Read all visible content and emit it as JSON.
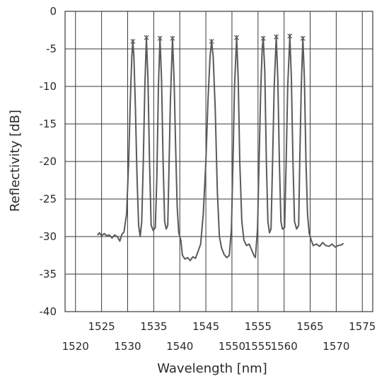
{
  "chart_data": {
    "type": "line",
    "title": "",
    "xlabel": "Wavelength [nm]",
    "ylabel": "Reflectivity [dB]",
    "xlim": [
      1518,
      1577
    ],
    "ylim": [
      -40,
      0
    ],
    "grid": true,
    "x_ticks_top_row": [
      "1525",
      "1535",
      "1545",
      "1555",
      "1565",
      "1575"
    ],
    "x_ticks_bottom_row": [
      "1520",
      "1530",
      "1540",
      "1550",
      "1555",
      "1560",
      "1570"
    ],
    "y_ticks": [
      "0",
      "-5",
      "-10",
      "-15",
      "-20",
      "-25",
      "-30",
      "-35",
      "-40"
    ],
    "series": [
      {
        "color": "#5a5a5a",
        "peaks": [
          {
            "x": 1531.0,
            "y": -4.0
          },
          {
            "x": 1533.6,
            "y": -3.5
          },
          {
            "x": 1536.2,
            "y": -3.6
          },
          {
            "x": 1538.6,
            "y": -3.6
          },
          {
            "x": 1546.1,
            "y": -4.0
          },
          {
            "x": 1550.9,
            "y": -3.5
          },
          {
            "x": 1556.0,
            "y": -3.6
          },
          {
            "x": 1558.5,
            "y": -3.4
          },
          {
            "x": 1561.1,
            "y": -3.3
          },
          {
            "x": 1563.6,
            "y": -3.6
          }
        ],
        "points": [
          [
            1524.2,
            -29.8
          ],
          [
            1524.6,
            -29.5
          ],
          [
            1525.0,
            -29.9
          ],
          [
            1525.5,
            -29.6
          ],
          [
            1526.0,
            -29.9
          ],
          [
            1526.5,
            -29.8
          ],
          [
            1527.0,
            -30.2
          ],
          [
            1527.5,
            -29.8
          ],
          [
            1528.0,
            -30.0
          ],
          [
            1528.5,
            -30.6
          ],
          [
            1528.9,
            -29.7
          ],
          [
            1529.3,
            -29.4
          ],
          [
            1529.8,
            -27.0
          ],
          [
            1530.2,
            -20.0
          ],
          [
            1530.5,
            -12.0
          ],
          [
            1530.8,
            -6.0
          ],
          [
            1531.0,
            -4.0
          ],
          [
            1531.2,
            -6.0
          ],
          [
            1531.5,
            -13.0
          ],
          [
            1531.8,
            -22.0
          ],
          [
            1532.1,
            -28.5
          ],
          [
            1532.4,
            -30.0
          ],
          [
            1532.7,
            -28.0
          ],
          [
            1533.0,
            -20.0
          ],
          [
            1533.3,
            -10.0
          ],
          [
            1533.6,
            -3.5
          ],
          [
            1533.9,
            -9.0
          ],
          [
            1534.2,
            -20.0
          ],
          [
            1534.5,
            -28.5
          ],
          [
            1534.9,
            -29.2
          ],
          [
            1535.3,
            -28.8
          ],
          [
            1535.6,
            -22.0
          ],
          [
            1535.9,
            -10.0
          ],
          [
            1536.2,
            -3.6
          ],
          [
            1536.5,
            -9.0
          ],
          [
            1536.8,
            -20.0
          ],
          [
            1537.1,
            -28.0
          ],
          [
            1537.4,
            -29.0
          ],
          [
            1537.7,
            -28.5
          ],
          [
            1537.9,
            -22.0
          ],
          [
            1538.2,
            -12.0
          ],
          [
            1538.6,
            -3.6
          ],
          [
            1538.9,
            -9.0
          ],
          [
            1539.2,
            -18.0
          ],
          [
            1539.5,
            -26.0
          ],
          [
            1539.8,
            -29.5
          ],
          [
            1540.2,
            -30.5
          ],
          [
            1540.5,
            -32.5
          ],
          [
            1541.0,
            -33.0
          ],
          [
            1541.5,
            -32.8
          ],
          [
            1542.0,
            -33.2
          ],
          [
            1542.5,
            -32.7
          ],
          [
            1543.0,
            -32.9
          ],
          [
            1543.5,
            -32.0
          ],
          [
            1544.0,
            -31.0
          ],
          [
            1544.5,
            -27.0
          ],
          [
            1545.0,
            -20.0
          ],
          [
            1545.4,
            -12.0
          ],
          [
            1545.8,
            -6.0
          ],
          [
            1546.1,
            -4.0
          ],
          [
            1546.4,
            -6.0
          ],
          [
            1546.8,
            -13.0
          ],
          [
            1547.2,
            -24.0
          ],
          [
            1547.6,
            -30.0
          ],
          [
            1548.0,
            -31.5
          ],
          [
            1548.5,
            -32.4
          ],
          [
            1549.0,
            -32.8
          ],
          [
            1549.5,
            -32.5
          ],
          [
            1549.9,
            -29.0
          ],
          [
            1550.2,
            -20.0
          ],
          [
            1550.5,
            -10.0
          ],
          [
            1550.9,
            -3.5
          ],
          [
            1551.2,
            -9.0
          ],
          [
            1551.5,
            -20.0
          ],
          [
            1551.9,
            -28.0
          ],
          [
            1552.3,
            -30.5
          ],
          [
            1552.8,
            -31.2
          ],
          [
            1553.3,
            -31.0
          ],
          [
            1553.8,
            -31.8
          ],
          [
            1554.2,
            -32.5
          ],
          [
            1554.5,
            -32.8
          ],
          [
            1554.9,
            -29.0
          ],
          [
            1555.2,
            -20.0
          ],
          [
            1555.5,
            -11.0
          ],
          [
            1555.8,
            -5.0
          ],
          [
            1556.0,
            -3.6
          ],
          [
            1556.3,
            -8.0
          ],
          [
            1556.6,
            -20.0
          ],
          [
            1556.9,
            -28.0
          ],
          [
            1557.2,
            -29.5
          ],
          [
            1557.5,
            -29.0
          ],
          [
            1557.8,
            -20.0
          ],
          [
            1558.1,
            -10.0
          ],
          [
            1558.5,
            -3.4
          ],
          [
            1558.8,
            -9.0
          ],
          [
            1559.1,
            -20.0
          ],
          [
            1559.4,
            -28.0
          ],
          [
            1559.7,
            -29.0
          ],
          [
            1560.1,
            -28.8
          ],
          [
            1560.4,
            -20.0
          ],
          [
            1560.7,
            -10.0
          ],
          [
            1561.1,
            -3.3
          ],
          [
            1561.4,
            -9.0
          ],
          [
            1561.7,
            -20.0
          ],
          [
            1562.0,
            -28.0
          ],
          [
            1562.4,
            -29.0
          ],
          [
            1562.8,
            -28.5
          ],
          [
            1563.0,
            -20.0
          ],
          [
            1563.3,
            -10.0
          ],
          [
            1563.6,
            -3.6
          ],
          [
            1563.9,
            -9.0
          ],
          [
            1564.2,
            -20.0
          ],
          [
            1564.5,
            -27.0
          ],
          [
            1564.8,
            -29.5
          ],
          [
            1565.2,
            -30.5
          ],
          [
            1565.6,
            -31.2
          ],
          [
            1566.2,
            -31.0
          ],
          [
            1566.8,
            -31.3
          ],
          [
            1567.4,
            -30.8
          ],
          [
            1568.0,
            -31.2
          ],
          [
            1568.6,
            -31.3
          ],
          [
            1569.2,
            -31.0
          ],
          [
            1569.8,
            -31.4
          ],
          [
            1570.4,
            -31.2
          ],
          [
            1571.0,
            -31.1
          ],
          [
            1571.4,
            -30.9
          ]
        ]
      }
    ]
  }
}
